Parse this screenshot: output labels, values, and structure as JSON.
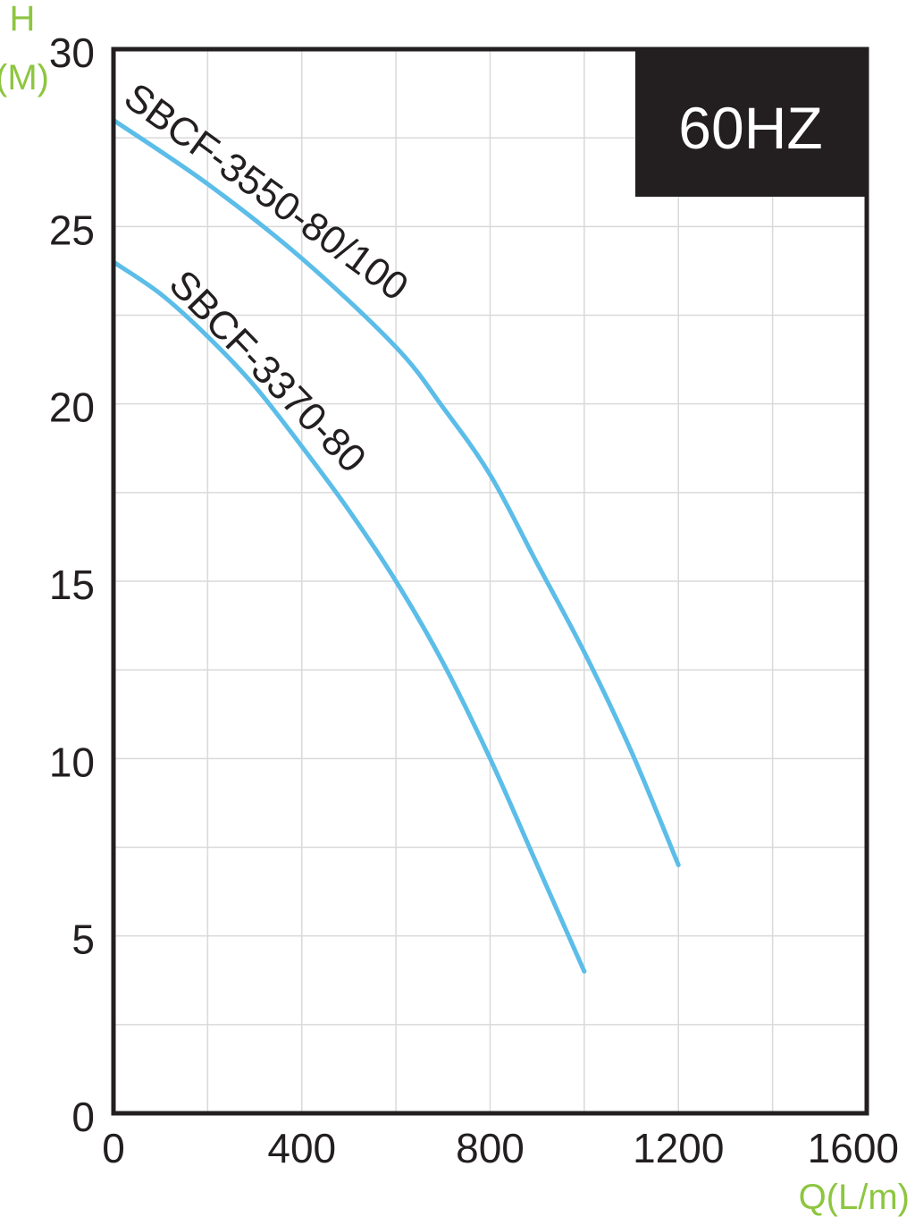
{
  "chart_data": {
    "type": "line",
    "y_unit_label": {
      "symbol": "H",
      "unit": "(M)"
    },
    "x_unit_label": "Q(L/m)",
    "badge": "60HZ",
    "xlim": [
      0,
      1600
    ],
    "ylim": [
      0,
      30
    ],
    "x_ticks": [
      0,
      400,
      800,
      1200,
      1600
    ],
    "y_ticks": [
      0,
      5,
      10,
      15,
      20,
      25,
      30
    ],
    "grid": true,
    "series": [
      {
        "name": "SBCF-3550-80/100",
        "x": [
          0,
          200,
          400,
          600,
          700,
          800,
          900,
          1000,
          1100,
          1200
        ],
        "y": [
          28,
          26.2,
          24.1,
          21.6,
          19.9,
          18,
          15.5,
          13,
          10.2,
          7
        ]
      },
      {
        "name": "SBCF-3370-80",
        "x": [
          0,
          100,
          200,
          300,
          400,
          500,
          600,
          700,
          800,
          900,
          1000
        ],
        "y": [
          24,
          23.1,
          21.9,
          20.5,
          18.8,
          17,
          15,
          12.7,
          10,
          7,
          4
        ]
      }
    ],
    "colors": {
      "curve": "#5bbde8",
      "unit_label": "#8dc63f",
      "badge_bg": "#231f20",
      "grid": "#d9d9d9",
      "axis": "#231f20"
    }
  }
}
